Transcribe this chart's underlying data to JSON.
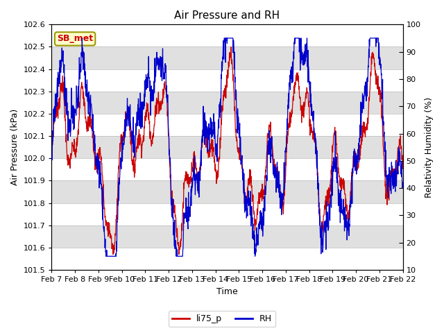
{
  "title": "Air Pressure and RH",
  "xlabel": "Time",
  "ylabel_left": "Air Pressure (kPa)",
  "ylabel_right": "Relativity Humidity (%)",
  "ylim_left": [
    101.5,
    102.6
  ],
  "ylim_right": [
    10,
    100
  ],
  "yticks_left": [
    101.5,
    101.6,
    101.7,
    101.8,
    101.9,
    102.0,
    102.1,
    102.2,
    102.3,
    102.4,
    102.5,
    102.6
  ],
  "yticks_right": [
    10,
    20,
    30,
    40,
    50,
    60,
    70,
    80,
    90,
    100
  ],
  "xtick_labels": [
    "Feb 7",
    "Feb 8",
    "Feb 9",
    "Feb 10",
    "Feb 11",
    "Feb 12",
    "Feb 13",
    "Feb 14",
    "Feb 15",
    "Feb 16",
    "Feb 17",
    "Feb 18",
    "Feb 19",
    "Feb 20",
    "Feb 21",
    "Feb 22"
  ],
  "color_pressure": "#cc0000",
  "color_rh": "#0000cc",
  "legend_label_pressure": "li75_p",
  "legend_label_rh": "RH",
  "station_label": "SB_met",
  "station_label_color": "#cc0000",
  "station_box_facecolor": "#ffffcc",
  "station_box_edgecolor": "#999900",
  "background_light": "#ffffff",
  "background_dark": "#e0e0e0",
  "title_fontsize": 11,
  "axis_label_fontsize": 9,
  "tick_fontsize": 8,
  "legend_fontsize": 9
}
